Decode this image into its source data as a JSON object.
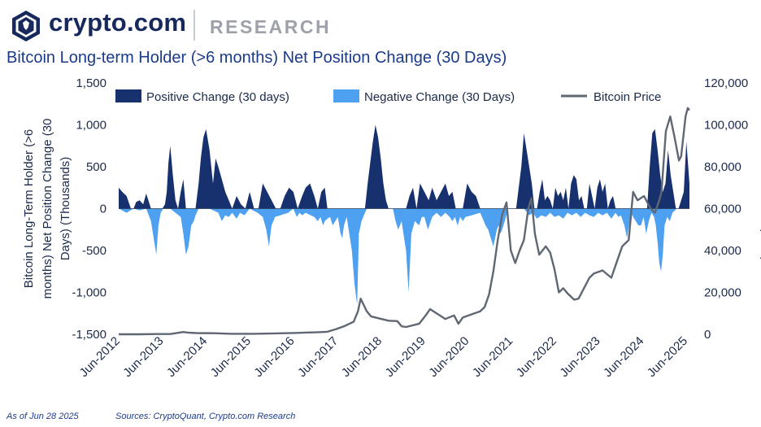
{
  "header": {
    "brand": "crypto.com",
    "section": "RESEARCH"
  },
  "colors": {
    "positive": "#17306e",
    "negative": "#4ea0f0",
    "price": "#5f6872",
    "text": "#1b2a4a",
    "title": "#1a3a8a"
  },
  "icons": {
    "logo": "crypto-com-lion-shield-icon"
  },
  "footer": {
    "as_of": "As of Jun 28 2025",
    "sources": "Sources: CryptoQuant, Crypto.com Research"
  },
  "chart_data": {
    "type": "area",
    "title": "Bitcoin Long-term Holder (>6 months) Net Position Change (30 Days)",
    "ylabel": "Bitcoin Long-Term Holder (>6 months) Net Position Change (30 Days) (Thousands)",
    "y2label": "Bitcoin Price (USD)",
    "ylim": [
      -1500,
      1500
    ],
    "y2lim": [
      0,
      120000
    ],
    "yticks": [
      1500,
      1000,
      500,
      0,
      -500,
      -1000,
      -1500
    ],
    "ytick_labels": [
      "1,500",
      "1,000",
      "500",
      "0",
      "-500",
      "-1,000",
      "-1,500"
    ],
    "y2ticks": [
      120000,
      100000,
      80000,
      60000,
      40000,
      20000,
      0
    ],
    "y2tick_labels": [
      "120,000",
      "100,000",
      "80,000",
      "60,000",
      "40,000",
      "20,000",
      "0"
    ],
    "xlim": [
      2012.42,
      2025.49
    ],
    "xticks": [
      2012.42,
      2013.42,
      2014.42,
      2015.42,
      2016.42,
      2017.42,
      2018.42,
      2019.42,
      2020.42,
      2021.42,
      2022.42,
      2023.42,
      2024.42,
      2025.42
    ],
    "xtick_labels": [
      "Jun-2012",
      "Jun-2013",
      "Jun-2014",
      "Jun-2015",
      "Jun-2016",
      "Jun-2017",
      "Jun-2018",
      "Jun-2019",
      "Jun-2020",
      "Jun-2021",
      "Jun-2022",
      "Jun-2023",
      "Jun-2024",
      "Jun-2025"
    ],
    "legend": "top",
    "grid": false,
    "series": [
      {
        "name": "Positive Change (30 days)",
        "kind": "area",
        "color": "#17306e",
        "x": [
          2012.42,
          2012.5,
          2012.6,
          2012.7,
          2012.76,
          2012.82,
          2012.9,
          2012.98,
          2013.05,
          2013.1,
          2013.16,
          2013.22,
          2013.28,
          2013.36,
          2013.42,
          2013.48,
          2013.52,
          2013.56,
          2013.6,
          2013.66,
          2013.72,
          2013.78,
          2013.84,
          2013.9,
          2013.96,
          2014.04,
          2014.1,
          2014.18,
          2014.25,
          2014.3,
          2014.36,
          2014.42,
          2014.5,
          2014.58,
          2014.64,
          2014.7,
          2014.78,
          2014.86,
          2014.94,
          2015.02,
          2015.12,
          2015.22,
          2015.32,
          2015.42,
          2015.52,
          2015.62,
          2015.72,
          2015.82,
          2015.92,
          2016.02,
          2016.12,
          2016.22,
          2016.32,
          2016.42,
          2016.52,
          2016.62,
          2016.7,
          2016.8,
          2016.9,
          2016.98,
          2017.06,
          2017.14,
          2017.2,
          2017.3,
          2017.4,
          2017.5,
          2017.6,
          2017.7,
          2017.8,
          2017.9,
          2018.0,
          2018.06,
          2018.12,
          2018.18,
          2018.24,
          2018.3,
          2018.36,
          2018.42,
          2018.48,
          2018.54,
          2018.6,
          2018.66,
          2018.72,
          2018.78,
          2018.84,
          2018.92,
          2019.0,
          2019.08,
          2019.16,
          2019.24,
          2019.32,
          2019.42,
          2019.52,
          2019.6,
          2019.7,
          2019.8,
          2019.9,
          2019.98,
          2020.06,
          2020.14,
          2020.22,
          2020.3,
          2020.4,
          2020.5,
          2020.6,
          2020.7,
          2020.8,
          2020.9,
          2021.0,
          2021.06,
          2021.12,
          2021.18,
          2021.22,
          2021.26,
          2021.3,
          2021.34,
          2021.4,
          2021.46,
          2021.52,
          2021.58,
          2021.64,
          2021.7,
          2021.76,
          2021.82,
          2021.88,
          2021.94,
          2022.0,
          2022.06,
          2022.12,
          2022.18,
          2022.24,
          2022.3,
          2022.36,
          2022.42,
          2022.48,
          2022.54,
          2022.6,
          2022.66,
          2022.72,
          2022.78,
          2022.84,
          2022.9,
          2022.96,
          2023.02,
          2023.08,
          2023.14,
          2023.2,
          2023.26,
          2023.32,
          2023.38,
          2023.44,
          2023.5,
          2023.56,
          2023.62,
          2023.68,
          2023.74,
          2023.8,
          2023.86,
          2023.92,
          2023.98,
          2024.04,
          2024.1,
          2024.16,
          2024.22,
          2024.28,
          2024.34,
          2024.4,
          2024.46,
          2024.52,
          2024.58,
          2024.64,
          2024.7,
          2024.76,
          2024.82,
          2024.88,
          2024.94,
          2025.0,
          2025.06,
          2025.12,
          2025.18,
          2025.24,
          2025.3,
          2025.36,
          2025.42,
          2025.49
        ],
        "values": [
          250,
          200,
          150,
          0,
          0,
          80,
          100,
          50,
          180,
          100,
          0,
          0,
          0,
          0,
          0,
          50,
          200,
          550,
          750,
          400,
          100,
          0,
          200,
          350,
          0,
          0,
          0,
          0,
          300,
          600,
          850,
          950,
          700,
          300,
          600,
          500,
          350,
          200,
          100,
          0,
          150,
          50,
          0,
          200,
          0,
          0,
          300,
          200,
          100,
          0,
          0,
          150,
          250,
          200,
          0,
          150,
          250,
          300,
          150,
          0,
          200,
          250,
          0,
          0,
          0,
          0,
          0,
          0,
          0,
          0,
          0,
          0,
          300,
          550,
          800,
          1000,
          850,
          600,
          300,
          100,
          0,
          0,
          0,
          0,
          0,
          0,
          0,
          150,
          250,
          0,
          300,
          200,
          100,
          250,
          100,
          200,
          300,
          150,
          200,
          0,
          0,
          0,
          300,
          200,
          150,
          0,
          0,
          0,
          0,
          0,
          0,
          0,
          0,
          0,
          0,
          0,
          0,
          0,
          0,
          250,
          500,
          900,
          700,
          500,
          300,
          0,
          0,
          200,
          350,
          100,
          150,
          100,
          0,
          250,
          150,
          200,
          100,
          250,
          0,
          300,
          400,
          350,
          100,
          150,
          0,
          0,
          300,
          150,
          0,
          250,
          350,
          200,
          300,
          0,
          100,
          150,
          0,
          0,
          0,
          0,
          0,
          0,
          0,
          0,
          0,
          0,
          0,
          0,
          0,
          500,
          900,
          950,
          700,
          400,
          200,
          300,
          700,
          400,
          200,
          0,
          0,
          100,
          200,
          800,
          300
        ]
      },
      {
        "name": "Negative Change (30 Days)",
        "kind": "area",
        "color": "#4ea0f0",
        "x": [
          2012.42,
          2012.6,
          2012.76,
          2012.9,
          2013.05,
          2013.16,
          2013.22,
          2013.28,
          2013.33,
          2013.38,
          2013.44,
          2013.6,
          2013.84,
          2013.9,
          2013.96,
          2014.02,
          2014.08,
          2014.14,
          2014.18,
          2014.25,
          2014.5,
          2014.7,
          2014.78,
          2014.86,
          2014.94,
          2015.02,
          2015.12,
          2015.2,
          2015.3,
          2015.42,
          2015.6,
          2015.72,
          2015.8,
          2015.86,
          2015.92,
          2016.0,
          2016.12,
          2016.3,
          2016.42,
          2016.5,
          2016.56,
          2016.62,
          2016.7,
          2016.9,
          2016.98,
          2017.04,
          2017.1,
          2017.14,
          2017.2,
          2017.26,
          2017.32,
          2017.38,
          2017.44,
          2017.5,
          2017.54,
          2017.58,
          2017.64,
          2017.7,
          2017.76,
          2017.82,
          2017.88,
          2017.92,
          2017.98,
          2018.1,
          2018.7,
          2018.76,
          2018.82,
          2018.86,
          2018.9,
          2018.94,
          2019.0,
          2019.06,
          2019.12,
          2019.2,
          2019.3,
          2019.36,
          2019.42,
          2019.5,
          2019.6,
          2019.7,
          2019.8,
          2019.9,
          2020.0,
          2020.06,
          2020.12,
          2020.18,
          2020.24,
          2020.3,
          2020.36,
          2020.5,
          2020.7,
          2020.82,
          2020.88,
          2020.94,
          2021.0,
          2021.04,
          2021.08,
          2021.12,
          2021.16,
          2021.2,
          2021.26,
          2021.34,
          2021.7,
          2021.82,
          2021.9,
          2022.0,
          2022.1,
          2022.2,
          2022.3,
          2022.4,
          2022.5,
          2022.6,
          2022.7,
          2022.8,
          2022.9,
          2023.0,
          2023.1,
          2023.2,
          2023.3,
          2023.4,
          2023.5,
          2023.6,
          2023.7,
          2023.8,
          2023.86,
          2023.92,
          2024.0,
          2024.06,
          2024.12,
          2024.16,
          2024.2,
          2024.26,
          2024.32,
          2024.38,
          2024.44,
          2024.5,
          2024.56,
          2024.62,
          2024.68,
          2024.72,
          2024.76,
          2024.8,
          2024.84,
          2024.88,
          2024.92,
          2024.98,
          2025.04,
          2025.1,
          2025.2,
          2025.49
        ],
        "values": [
          0,
          -50,
          0,
          -20,
          0,
          -150,
          -350,
          -550,
          -200,
          -50,
          0,
          0,
          -100,
          -300,
          -550,
          -450,
          -200,
          -150,
          -80,
          0,
          0,
          -50,
          -150,
          -80,
          -100,
          -50,
          -120,
          -50,
          -80,
          0,
          -50,
          -100,
          -250,
          -450,
          -200,
          -100,
          -80,
          -50,
          0,
          -100,
          -50,
          -80,
          -50,
          -100,
          -150,
          -100,
          -200,
          -150,
          -120,
          -100,
          -200,
          -150,
          -100,
          -300,
          -350,
          -200,
          -100,
          -300,
          -500,
          -900,
          -1150,
          -300,
          -150,
          0,
          0,
          -150,
          -250,
          -200,
          -150,
          -300,
          -500,
          -1000,
          -300,
          -150,
          -200,
          -100,
          -100,
          -250,
          -100,
          -50,
          -100,
          -50,
          -100,
          -150,
          -100,
          -200,
          -100,
          -150,
          -100,
          -80,
          -50,
          -200,
          -250,
          -350,
          -450,
          -350,
          -250,
          -200,
          -300,
          -250,
          -150,
          0,
          0,
          -80,
          -50,
          -120,
          -80,
          -100,
          -50,
          -100,
          -80,
          -120,
          -50,
          -80,
          -50,
          -100,
          -50,
          -80,
          -100,
          -50,
          -80,
          -50,
          -120,
          -50,
          -100,
          -80,
          -200,
          -350,
          -150,
          -50,
          -100,
          -150,
          -200,
          -200,
          -100,
          -300,
          -150,
          -50,
          -100,
          -200,
          -400,
          -650,
          -750,
          -550,
          -200,
          -100,
          -150,
          -50,
          0,
          0
        ]
      },
      {
        "name": "Bitcoin Price",
        "kind": "line",
        "axis": "right",
        "color": "#5f6872",
        "x": [
          2012.42,
          2012.9,
          2013.3,
          2013.6,
          2013.9,
          2014.0,
          2014.2,
          2014.6,
          2015.0,
          2015.5,
          2016.0,
          2016.5,
          2017.0,
          2017.2,
          2017.4,
          2017.6,
          2017.8,
          2017.9,
          2017.96,
          2018.1,
          2018.2,
          2018.4,
          2018.6,
          2018.8,
          2018.9,
          2019.0,
          2019.3,
          2019.45,
          2019.55,
          2019.7,
          2019.9,
          2020.1,
          2020.2,
          2020.3,
          2020.5,
          2020.7,
          2020.8,
          2020.9,
          2021.0,
          2021.1,
          2021.2,
          2021.3,
          2021.4,
          2021.5,
          2021.6,
          2021.7,
          2021.8,
          2021.87,
          2021.95,
          2022.05,
          2022.2,
          2022.3,
          2022.4,
          2022.5,
          2022.6,
          2022.7,
          2022.85,
          2022.95,
          2023.1,
          2023.2,
          2023.3,
          2023.5,
          2023.7,
          2023.85,
          2023.95,
          2024.1,
          2024.2,
          2024.3,
          2024.45,
          2024.6,
          2024.7,
          2024.8,
          2024.85,
          2024.95,
          2025.05,
          2025.15,
          2025.25,
          2025.3,
          2025.4,
          2025.45,
          2025.49
        ],
        "values": [
          6,
          12,
          120,
          100,
          1100,
          800,
          600,
          500,
          250,
          250,
          430,
          650,
          1000,
          1200,
          2500,
          4000,
          6000,
          11000,
          17000,
          11000,
          8500,
          7500,
          6500,
          6300,
          3800,
          3500,
          5000,
          9000,
          12000,
          10000,
          7300,
          9000,
          5000,
          8000,
          9500,
          11000,
          13000,
          19000,
          30000,
          45000,
          57000,
          63000,
          40000,
          34000,
          40000,
          45000,
          60000,
          65000,
          48000,
          38000,
          42000,
          39000,
          31000,
          20000,
          22000,
          19500,
          16500,
          17000,
          23000,
          27000,
          29000,
          30500,
          27000,
          36000,
          42000,
          45000,
          68000,
          64000,
          66000,
          60000,
          58000,
          64000,
          68000,
          97000,
          104000,
          94000,
          83000,
          85000,
          104000,
          108000,
          107000
        ]
      }
    ]
  }
}
